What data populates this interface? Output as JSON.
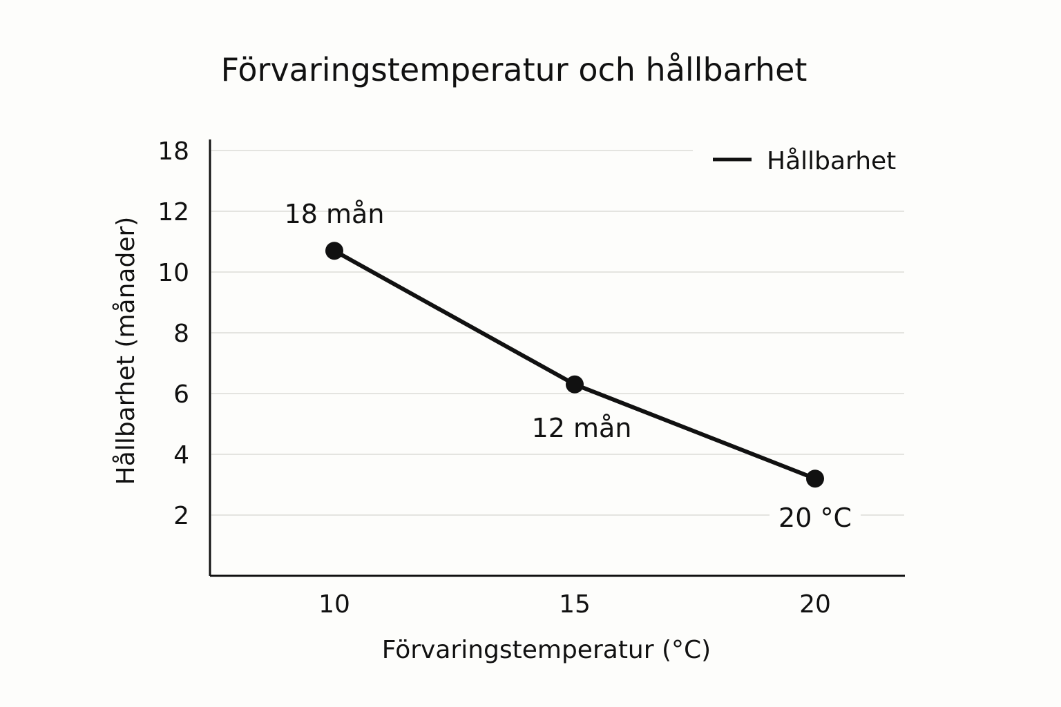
{
  "chart_data": {
    "type": "line",
    "title": "Förvaringstemperatur och hållbarhet",
    "xlabel": "Förvaringstemperatur (°C)",
    "ylabel": "Hållbarhet (månader)",
    "x_ticks": [
      "10",
      "15",
      "20"
    ],
    "y_ticks": [
      "2",
      "4",
      "6",
      "8",
      "10",
      "12",
      "18"
    ],
    "grid": true,
    "legend_position": "top-right",
    "series": [
      {
        "name": "Hållbarhet",
        "color": "#111111",
        "points": [
          {
            "x": 10,
            "y": 10.7,
            "label": "18 mån"
          },
          {
            "x": 15,
            "y": 6.3,
            "label": "12 mån"
          },
          {
            "x": 20,
            "y": 3.2,
            "label": "20 °C"
          }
        ]
      }
    ]
  }
}
